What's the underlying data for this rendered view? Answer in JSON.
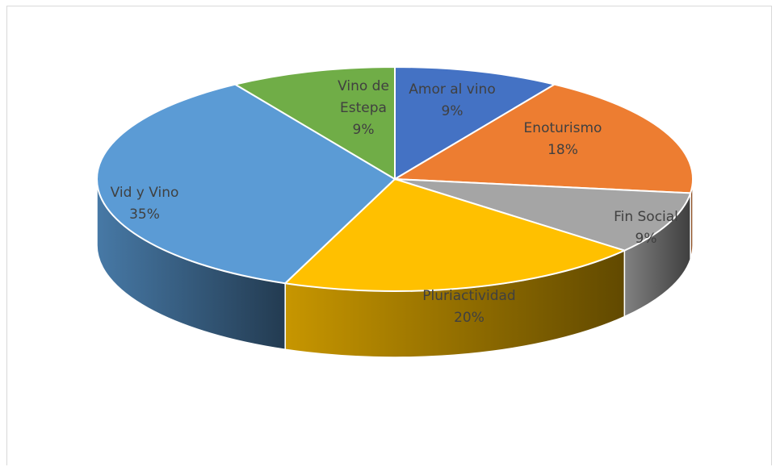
{
  "chart_data": {
    "type": "pie",
    "title": "",
    "style": "3d-exploded-none",
    "slices": [
      {
        "label": "Amor al vino",
        "value": 9,
        "percent_label": "9%",
        "color": "#4472C4"
      },
      {
        "label": "Enoturismo",
        "value": 18,
        "percent_label": "18%",
        "color": "#ED7D31"
      },
      {
        "label": "Fin Social",
        "value": 9,
        "percent_label": "9%",
        "color": "#A5A5A5"
      },
      {
        "label": "Pluriactividad",
        "value": 20,
        "percent_label": "20%",
        "color": "#FFC000"
      },
      {
        "label": "Vid y Vino",
        "value": 35,
        "percent_label": "35%",
        "color": "#5B9BD5"
      },
      {
        "label": "Vino de Estepa",
        "value": 9,
        "percent_label": "9%",
        "color": "#70AD47"
      }
    ],
    "legend": "none",
    "data_labels": "category-and-percent"
  }
}
